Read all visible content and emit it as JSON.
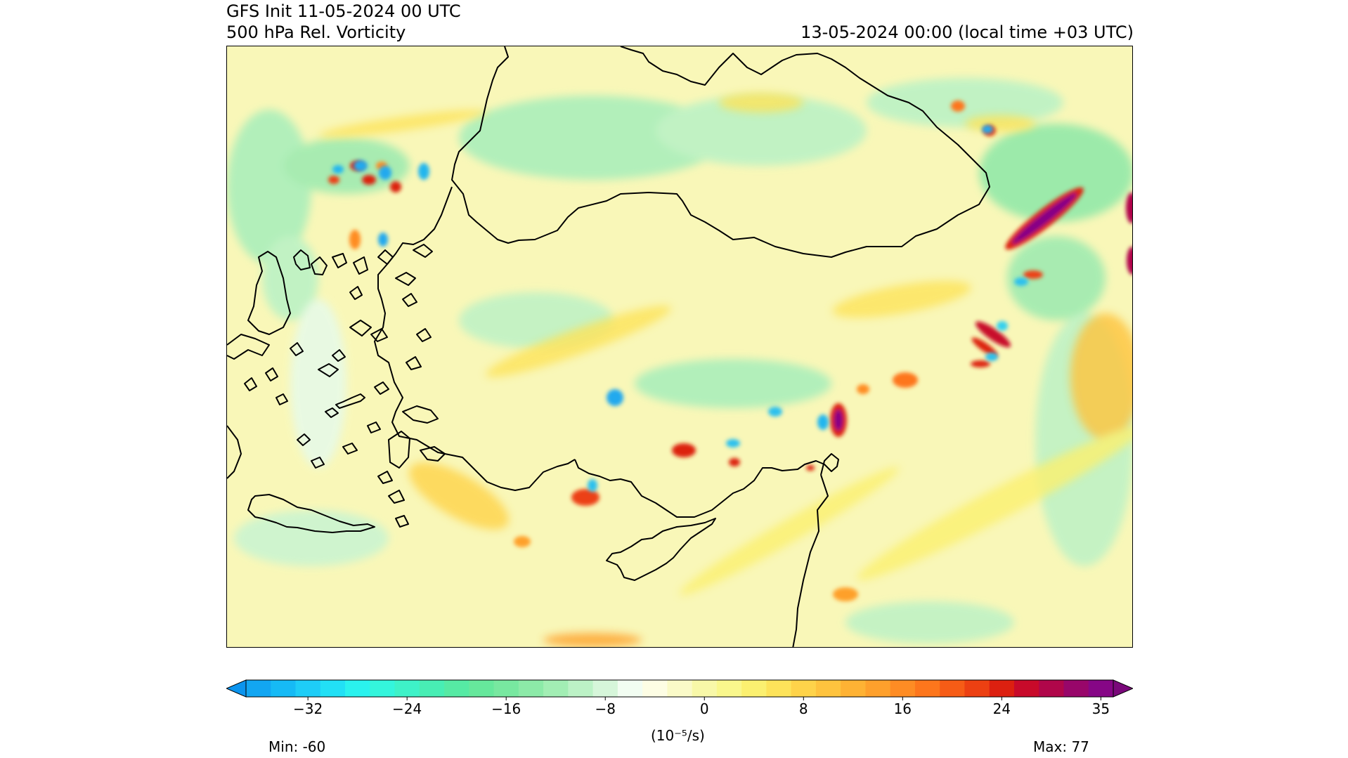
{
  "header": {
    "title_line1": "GFS Init 11-05-2024 00 UTC",
    "title_line2": "500 hPa Rel. Vorticity",
    "valid_time": "13-05-2024 00:00 (local time +03 UTC)"
  },
  "colorbar": {
    "ticks": [
      "−32",
      "−24",
      "−16",
      "−8",
      "0",
      "8",
      "16",
      "24",
      "35"
    ],
    "units": "(10⁻⁵/s)",
    "colors": [
      "#12a6f2",
      "#16baf5",
      "#1ecdf7",
      "#22e0f5",
      "#2af2ee",
      "#34f5dc",
      "#3ef2c8",
      "#48eeb4",
      "#56eaa4",
      "#66e89c",
      "#78e8a0",
      "#8ceaa8",
      "#a2eeb4",
      "#bcf2c6",
      "#d6f6da",
      "#f2fdf2",
      "#fdfde4",
      "#fafac8",
      "#f8f8a8",
      "#f9f78c",
      "#fbf070",
      "#fde35a",
      "#fed34a",
      "#fec33e",
      "#feb234",
      "#fea02c",
      "#fe8c24",
      "#fd761c",
      "#f65c16",
      "#ec4012",
      "#dc2010",
      "#c80a2a",
      "#b0064a",
      "#98066a",
      "#860686"
    ],
    "extend_below_color": "#0b94ee",
    "extend_above_color": "#7a087a"
  },
  "stats": {
    "min_label": "Min: -60",
    "max_label": "Max: 77"
  },
  "map": {
    "background_color": "#f9f7b8",
    "projection_frame": "lat-lon",
    "features": [
      "coastlines",
      "relative-vorticity-contourf"
    ]
  }
}
